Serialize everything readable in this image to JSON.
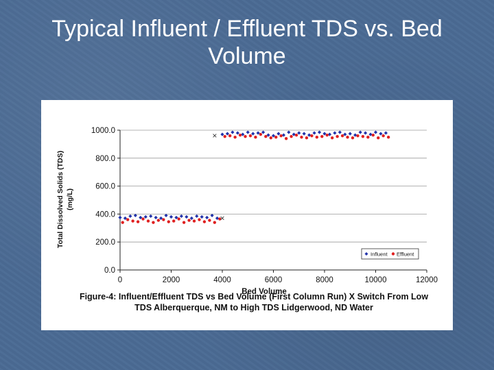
{
  "slide": {
    "title": "Typical Influent / Effluent TDS vs. Bed Volume"
  },
  "figure": {
    "caption": "Figure-4: Influent/Effluent TDS vs Bed Volume (First Column Run) X Switch From Low TDS Alberquerque, NM to High TDS Lidgerwood, ND Water"
  },
  "colors": {
    "background": "#4a6a93",
    "influent": "#2233aa",
    "effluent": "#e02020"
  },
  "chart_data": {
    "type": "scatter",
    "xlabel": "Bed Volume",
    "ylabel": "Total Dissolved Solids (TDS) (mg/L)",
    "xlim": [
      0,
      12000
    ],
    "ylim": [
      0,
      1000
    ],
    "x_ticks": [
      "0",
      "2000",
      "4000",
      "6000",
      "8000",
      "10000",
      "12000"
    ],
    "y_ticks": [
      "0.0",
      "200.0",
      "400.0",
      "600.0",
      "800.0",
      "1000.0"
    ],
    "grid": true,
    "legend_position": "bottom-right",
    "series": [
      {
        "name": "Influent",
        "marker": "diamond",
        "x": [
          0,
          200,
          400,
          600,
          800,
          1000,
          1200,
          1400,
          1600,
          1800,
          2000,
          2200,
          2400,
          2600,
          2800,
          3000,
          3200,
          3400,
          3600,
          3800,
          4000,
          4200,
          4400,
          4600,
          4800,
          5000,
          5200,
          5400,
          5600,
          5800,
          6000,
          6200,
          6400,
          6600,
          6800,
          7000,
          7200,
          7400,
          7600,
          7800,
          8000,
          8200,
          8400,
          8600,
          8800,
          9000,
          9200,
          9400,
          9600,
          9800,
          10000,
          10200,
          10400
        ],
        "y": [
          375,
          370,
          385,
          390,
          375,
          380,
          385,
          375,
          370,
          390,
          380,
          375,
          385,
          380,
          370,
          385,
          380,
          375,
          390,
          370,
          970,
          975,
          985,
          980,
          970,
          985,
          975,
          980,
          985,
          965,
          960,
          975,
          965,
          985,
          970,
          980,
          975,
          965,
          980,
          985,
          975,
          970,
          980,
          985,
          970,
          975,
          965,
          985,
          980,
          970,
          985,
          975,
          980
        ]
      },
      {
        "name": "Effluent",
        "marker": "circle",
        "x": [
          100,
          300,
          500,
          700,
          900,
          1100,
          1300,
          1500,
          1700,
          1900,
          2100,
          2300,
          2500,
          2700,
          2900,
          3100,
          3300,
          3500,
          3700,
          3900,
          4100,
          4300,
          4500,
          4700,
          4900,
          5100,
          5300,
          5500,
          5700,
          5900,
          6100,
          6300,
          6500,
          6700,
          6900,
          7100,
          7300,
          7500,
          7700,
          7900,
          8100,
          8300,
          8500,
          8700,
          8900,
          9100,
          9300,
          9500,
          9700,
          9900,
          10100,
          10300,
          10500
        ],
        "y": [
          340,
          360,
          350,
          345,
          365,
          350,
          340,
          355,
          360,
          345,
          350,
          365,
          340,
          355,
          350,
          360,
          345,
          355,
          340,
          365,
          955,
          960,
          950,
          965,
          955,
          960,
          950,
          970,
          955,
          945,
          950,
          960,
          940,
          955,
          965,
          950,
          945,
          960,
          950,
          955,
          965,
          945,
          955,
          960,
          950,
          945,
          960,
          955,
          950,
          965,
          945,
          960,
          950
        ]
      }
    ],
    "switch_markers": [
      {
        "x": 3700,
        "y": 960
      },
      {
        "x": 4000,
        "y": 370
      }
    ],
    "switch_marker_symbol": "×"
  }
}
